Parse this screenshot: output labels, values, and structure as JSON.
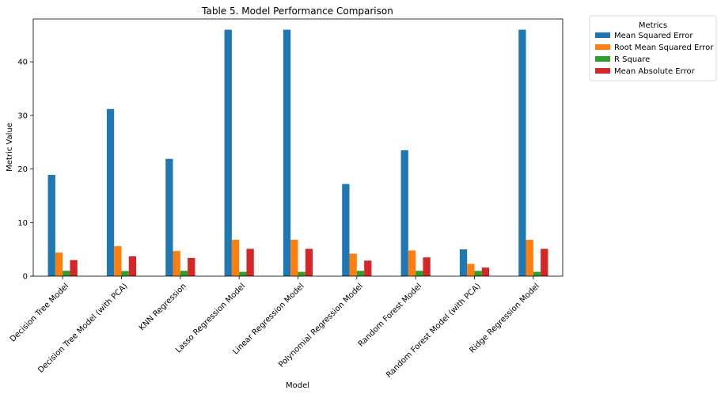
{
  "chart_data": {
    "type": "bar",
    "title": "Table 5. Model Performance Comparison",
    "xlabel": "Model",
    "ylabel": "Metric Value",
    "ylim": [
      0,
      48
    ],
    "yticks": [
      0,
      10,
      20,
      30,
      40
    ],
    "grid": false,
    "legend_title": "Metrics",
    "legend_position": "outside-top-right",
    "categories": [
      "Decision Tree Model",
      "Decision Tree Model (with PCA)",
      "KNN Regression",
      "Lasso Regression Model",
      "Linear Regression Model",
      "Polynomial Regression Model",
      "Random Forest Model",
      "Random Forest Model (with PCA)",
      "Ridge Regression Model"
    ],
    "series": [
      {
        "name": "Mean Squared Error",
        "color": "#1f77b4",
        "values": [
          18.9,
          31.2,
          21.9,
          46.0,
          46.0,
          17.2,
          23.5,
          5.0,
          46.0
        ]
      },
      {
        "name": "Root Mean Squared Error",
        "color": "#ff7f0e",
        "values": [
          4.4,
          5.6,
          4.7,
          6.8,
          6.8,
          4.2,
          4.8,
          2.3,
          6.8
        ]
      },
      {
        "name": "R Square",
        "color": "#2ca02c",
        "values": [
          1.0,
          0.95,
          1.0,
          0.8,
          0.8,
          1.0,
          1.0,
          0.98,
          0.8
        ]
      },
      {
        "name": "Mean Absolute Error",
        "color": "#d62728",
        "values": [
          3.0,
          3.7,
          3.4,
          5.1,
          5.1,
          2.9,
          3.5,
          1.6,
          5.1
        ]
      }
    ]
  }
}
